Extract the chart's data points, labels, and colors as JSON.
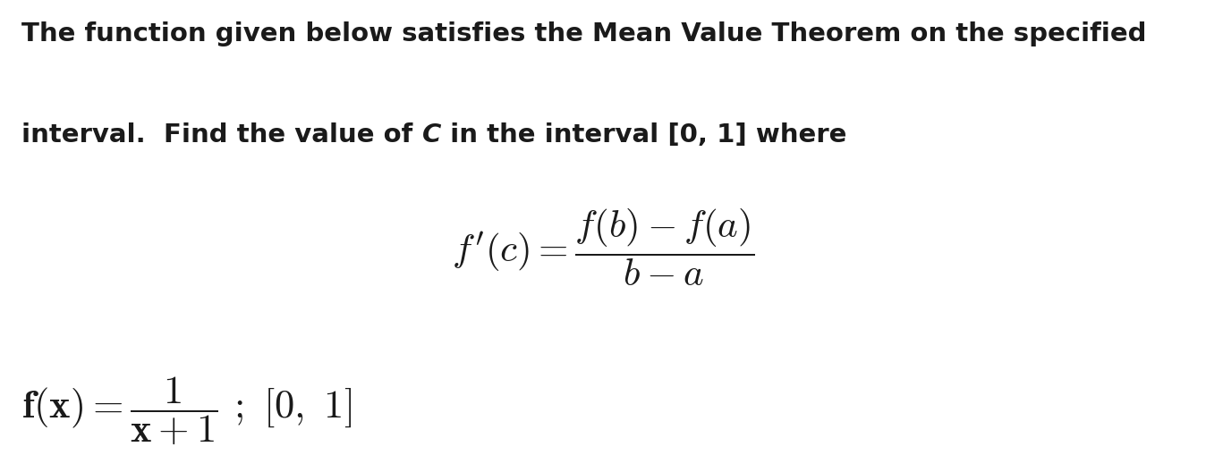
{
  "background_color": "#ffffff",
  "figsize": [
    13.48,
    5.28
  ],
  "dpi": 100,
  "line1": "The function given below satisfies the Mean Value Theorem on the specified",
  "line2_pre": "interval.  Find the value of ",
  "line2_C": "C",
  "line2_post": " in the interval [0, 1] where",
  "text_color": "#1a1a1a",
  "font_size_body": 21,
  "font_size_formula_mvt": 31,
  "font_size_formula_bottom": 32
}
